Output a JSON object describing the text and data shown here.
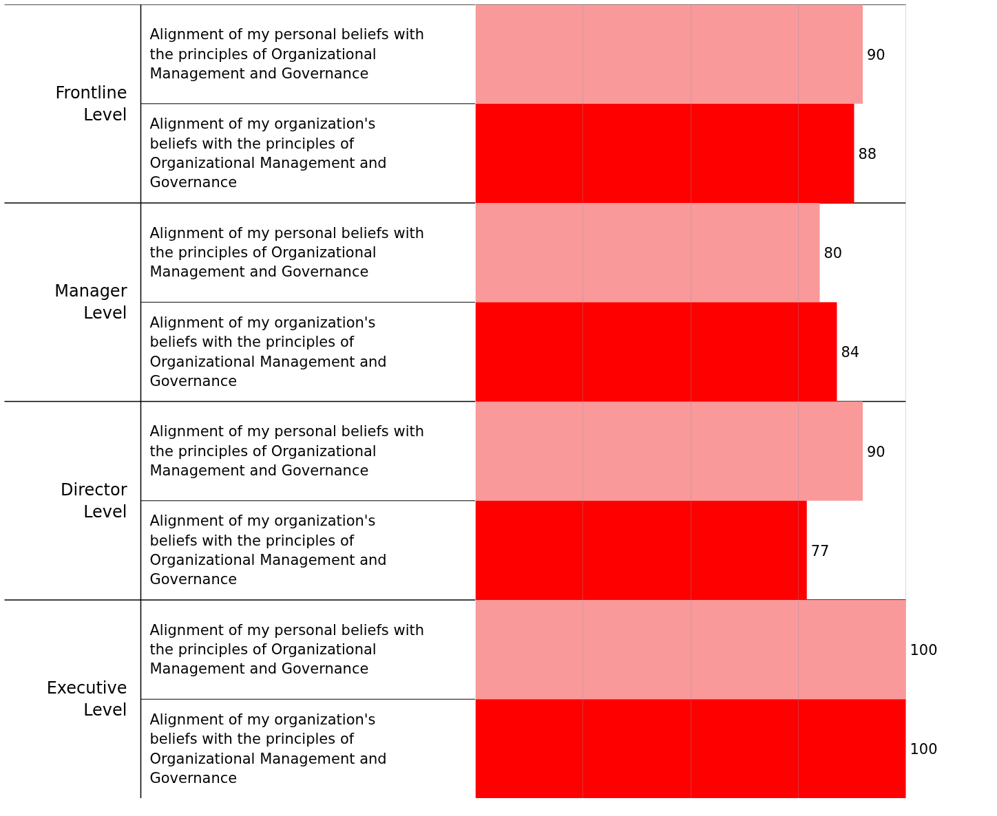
{
  "chart_data": {
    "type": "bar",
    "orientation": "horizontal",
    "categories": [
      "Alignment of my personal beliefs with the principles of Organizational Management and Governance",
      "Alignment of my organization's beliefs with the principles of Organizational Management and Governance",
      "Alignment of my personal beliefs with the principles of Organizational Management and Governance",
      "Alignment of my organization's beliefs with the principles of Organizational Management and Governance",
      "Alignment of my personal beliefs with the principles of Organizational Management and Governance",
      "Alignment of my organization's beliefs with the principles of Organizational Management and Governance",
      "Alignment of my personal beliefs with the principles of Organizational Management and Governance",
      "Alignment of my organization's beliefs with the principles of Organizational Management and Governance"
    ],
    "values": [
      90,
      88,
      80,
      84,
      90,
      77,
      100,
      100
    ],
    "colors": [
      "#fa9999",
      "#ff0000",
      "#fa9999",
      "#ff0000",
      "#fa9999",
      "#ff0000",
      "#fa9999",
      "#ff0000"
    ],
    "xlim": [
      0,
      100
    ],
    "xticks": [
      {
        "value": 25,
        "label": null
      },
      {
        "value": 50,
        "label": null
      },
      {
        "value": 75,
        "label": null
      },
      {
        "value": 100,
        "label": null
      }
    ],
    "grid": "x",
    "tick_labels": false,
    "data_labels": true,
    "annotations": [
      "Frontline Level",
      "Manager Level",
      "Director Level",
      "Executive Level"
    ]
  }
}
